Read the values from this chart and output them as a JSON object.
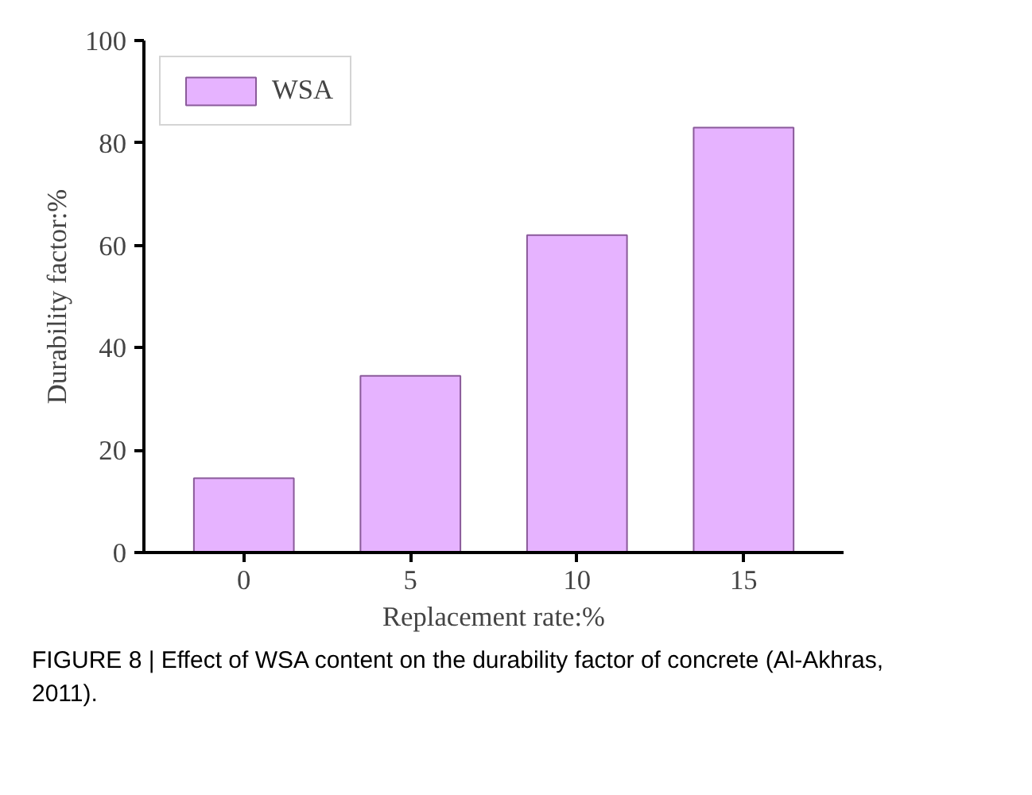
{
  "chart_data": {
    "type": "bar",
    "xlabel": "Replacement rate:%",
    "ylabel": "Durability factor:%",
    "categories": [
      "0",
      "5",
      "10",
      "15"
    ],
    "series": [
      {
        "name": "WSA",
        "color": "#e6b3ff",
        "values": [
          14.5,
          34.5,
          62,
          83
        ]
      }
    ],
    "ylim": [
      0,
      100
    ],
    "yticks": [
      0,
      20,
      40,
      60,
      80,
      100
    ],
    "grid": false,
    "legend": "top left",
    "annotations": [
      "FIGURE 8 | Effect of WSA content on the durability factor of concrete (Al-Akhras, 2011)."
    ]
  }
}
